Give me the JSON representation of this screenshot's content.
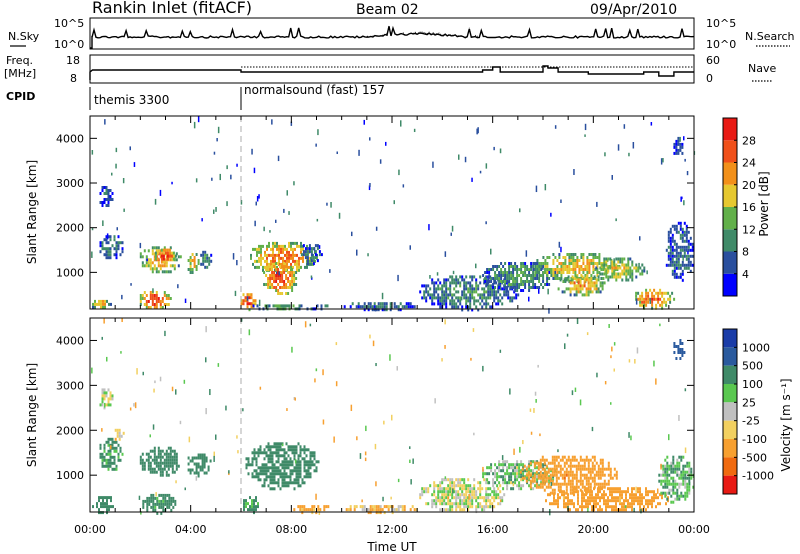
{
  "header": {
    "title": "Rankin Inlet (fitACF)",
    "beam": "Beam 02",
    "date": "09/Apr/2010"
  },
  "top_panels": {
    "nsky_label": "N.Sky",
    "nsky_top": "10^5",
    "nsky_bottom": "10^0",
    "nsearch_label": "N.Search",
    "freq_label": "Freq.",
    "freq_unit": "[MHz]",
    "freq_top": "18",
    "freq_bottom": "8",
    "nave_label": "Nave",
    "nave_top": "60",
    "nave_bottom": "0",
    "cpid_label": "CPID",
    "cpid_1": "themis 3300",
    "cpid_2": "normalsound (fast) 157"
  },
  "x_axis": {
    "label": "Time UT",
    "ticks": [
      "00:00",
      "04:00",
      "08:00",
      "12:00",
      "16:00",
      "20:00",
      "00:00"
    ]
  },
  "power_colorbar": {
    "label": "Power [dB]",
    "ticks": [
      "4",
      "8",
      "12",
      "16",
      "20",
      "24",
      "28"
    ],
    "colors": [
      "#0000ff",
      "#2a4f9e",
      "#3f8a68",
      "#62b04a",
      "#e6c830",
      "#f2901a",
      "#f0501a",
      "#e81a14"
    ]
  },
  "velocity_colorbar": {
    "label": "Velocity [m s⁻¹]",
    "ticks": [
      "1000",
      "500",
      "100",
      "25",
      "-25",
      "-100",
      "-500",
      "-1000"
    ],
    "colors": [
      "#1a3ca8",
      "#2a5a9e",
      "#3f8a68",
      "#5ac850",
      "#c0c0c0",
      "#f2d060",
      "#f7a030",
      "#f06a10",
      "#e81a14"
    ]
  },
  "chart_data": [
    {
      "type": "heatmap",
      "name": "power",
      "ylabel": "Slant Range [km]",
      "xlabel": "",
      "yticks": [
        "1000",
        "2000",
        "3000",
        "4000"
      ],
      "ylim": [
        180,
        4500
      ],
      "xlim_hours": [
        0,
        24
      ],
      "blobs": [
        {
          "t0": 0.3,
          "t1": 1.3,
          "r0": 1300,
          "r1": 1900,
          "power": 10
        },
        {
          "t0": 0.3,
          "t1": 0.9,
          "r0": 2500,
          "r1": 3000,
          "power": 6
        },
        {
          "t0": 0.0,
          "t1": 0.8,
          "r0": 180,
          "r1": 450,
          "power": 20
        },
        {
          "t0": 1.9,
          "t1": 3.2,
          "r0": 180,
          "r1": 650,
          "power": 28
        },
        {
          "t0": 1.9,
          "t1": 3.6,
          "r0": 1000,
          "r1": 1650,
          "power": 22
        },
        {
          "t0": 2.5,
          "t1": 3.4,
          "r0": 1200,
          "r1": 1600,
          "power": 27
        },
        {
          "t0": 3.8,
          "t1": 4.3,
          "r0": 1000,
          "r1": 1500,
          "power": 20
        },
        {
          "t0": 4.3,
          "t1": 4.8,
          "r0": 1100,
          "r1": 1550,
          "power": 12
        },
        {
          "t0": 5.9,
          "t1": 6.6,
          "r0": 180,
          "r1": 600,
          "power": 28
        },
        {
          "t0": 6.2,
          "t1": 9.0,
          "r0": 1000,
          "r1": 1750,
          "power": 24
        },
        {
          "t0": 6.8,
          "t1": 8.2,
          "r0": 500,
          "r1": 1300,
          "power": 27
        },
        {
          "t0": 8.3,
          "t1": 9.2,
          "r0": 1200,
          "r1": 1700,
          "power": 8
        },
        {
          "t0": 6.3,
          "t1": 9.5,
          "r0": 180,
          "r1": 350,
          "power": 12
        },
        {
          "t0": 10.0,
          "t1": 13.0,
          "r0": 180,
          "r1": 400,
          "power": 8
        },
        {
          "t0": 13.0,
          "t1": 17.0,
          "r0": 180,
          "r1": 1000,
          "power": 10
        },
        {
          "t0": 15.5,
          "t1": 18.5,
          "r0": 600,
          "r1": 1300,
          "power": 12
        },
        {
          "t0": 17.5,
          "t1": 21.0,
          "r0": 800,
          "r1": 1500,
          "power": 20
        },
        {
          "t0": 18.5,
          "t1": 20.5,
          "r0": 500,
          "r1": 1000,
          "power": 22
        },
        {
          "t0": 20.0,
          "t1": 22.0,
          "r0": 800,
          "r1": 1400,
          "power": 18
        },
        {
          "t0": 21.5,
          "t1": 23.2,
          "r0": 200,
          "r1": 700,
          "power": 26
        },
        {
          "t0": 22.8,
          "t1": 24.0,
          "r0": 800,
          "r1": 2200,
          "power": 8
        },
        {
          "t0": 23.1,
          "t1": 23.6,
          "r0": 3600,
          "r1": 4100,
          "power": 4
        }
      ]
    },
    {
      "type": "heatmap",
      "name": "velocity",
      "ylabel": "Slant Range [km]",
      "xlabel": "Time UT",
      "yticks": [
        "1000",
        "2000",
        "3000",
        "4000"
      ],
      "ylim": [
        180,
        4500
      ],
      "xlim_hours": [
        0,
        24
      ],
      "blobs": [
        {
          "t0": 0.3,
          "t1": 1.3,
          "r0": 1100,
          "r1": 1900,
          "velocity": 150
        },
        {
          "t0": 0.9,
          "t1": 1.3,
          "r0": 1800,
          "r1": 2100,
          "velocity": -80
        },
        {
          "t0": 0.3,
          "t1": 0.9,
          "r0": 2500,
          "r1": 3000,
          "velocity": 0
        },
        {
          "t0": 0.0,
          "t1": 1.0,
          "r0": 180,
          "r1": 600,
          "velocity": 200
        },
        {
          "t0": 1.9,
          "t1": 3.6,
          "r0": 1000,
          "r1": 1700,
          "velocity": 200
        },
        {
          "t0": 2.0,
          "t1": 3.4,
          "r0": 180,
          "r1": 650,
          "velocity": 180
        },
        {
          "t0": 3.8,
          "t1": 4.8,
          "r0": 1000,
          "r1": 1550,
          "velocity": 200
        },
        {
          "t0": 6.1,
          "t1": 9.1,
          "r0": 700,
          "r1": 1800,
          "velocity": 220
        },
        {
          "t0": 6.0,
          "t1": 6.7,
          "r0": 180,
          "r1": 600,
          "velocity": 150
        },
        {
          "t0": 8.0,
          "t1": 9.5,
          "r0": 180,
          "r1": 400,
          "velocity": -150
        },
        {
          "t0": 10.0,
          "t1": 13.0,
          "r0": 180,
          "r1": 400,
          "velocity": -80
        },
        {
          "t0": 13.0,
          "t1": 16.5,
          "r0": 200,
          "r1": 1000,
          "velocity": 0
        },
        {
          "t0": 15.5,
          "t1": 18.5,
          "r0": 700,
          "r1": 1400,
          "velocity": 60
        },
        {
          "t0": 17.0,
          "t1": 21.0,
          "r0": 600,
          "r1": 1500,
          "velocity": -400
        },
        {
          "t0": 18.0,
          "t1": 23.0,
          "r0": 200,
          "r1": 800,
          "velocity": -250
        },
        {
          "t0": 22.5,
          "t1": 24.0,
          "r0": 400,
          "r1": 1500,
          "velocity": 80
        },
        {
          "t0": 23.1,
          "t1": 23.6,
          "r0": 3600,
          "r1": 4100,
          "velocity": 800
        }
      ]
    }
  ]
}
